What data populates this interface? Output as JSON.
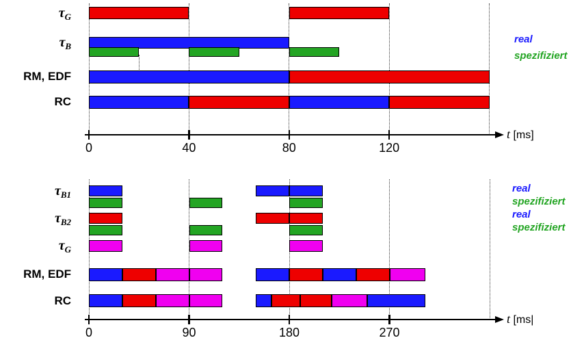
{
  "colors": {
    "red": "#ee0000",
    "blue": "#1a1aff",
    "green": "#23a523",
    "magenta": "#f000f0",
    "axis": "#000000"
  },
  "chart_data": [
    {
      "id": "top",
      "type": "gantt-schedule",
      "xlabel_var": "t",
      "xlabel_unit": "[ms]",
      "ticks": [
        0,
        40,
        80,
        120
      ],
      "x_axis_range_ms": [
        0,
        165
      ],
      "gridlines_ms": [
        0,
        40,
        80,
        120,
        160
      ],
      "aux_gridline_ms": 20,
      "grid": "dotted-vertical",
      "legend_position": "right",
      "legend": [
        {
          "text": "real",
          "color": "blue"
        },
        {
          "text": "spezifiziert",
          "color": "green"
        }
      ],
      "rows": [
        {
          "label": "τ",
          "sub": "G",
          "lanes": [
            [
              {
                "s": 0,
                "e": 40,
                "c": "red"
              },
              {
                "s": 80,
                "e": 120,
                "c": "red"
              }
            ]
          ]
        },
        {
          "label": "τ",
          "sub": "B",
          "lanes": [
            [
              {
                "s": 0,
                "e": 80,
                "c": "blue"
              }
            ],
            [
              {
                "s": 0,
                "e": 20,
                "c": "green"
              },
              {
                "s": 40,
                "e": 60,
                "c": "green"
              },
              {
                "s": 80,
                "e": 100,
                "c": "green"
              }
            ]
          ]
        },
        {
          "label": "RM, EDF",
          "lanes": [
            [
              {
                "s": 0,
                "e": 80,
                "c": "blue"
              },
              {
                "s": 80,
                "e": 160,
                "c": "red"
              }
            ]
          ]
        },
        {
          "label": "RC",
          "lanes": [
            [
              {
                "s": 0,
                "e": 40,
                "c": "blue"
              },
              {
                "s": 40,
                "e": 80,
                "c": "red"
              },
              {
                "s": 80,
                "e": 120,
                "c": "blue"
              },
              {
                "s": 120,
                "e": 160,
                "c": "red"
              }
            ]
          ]
        }
      ]
    },
    {
      "id": "bottom",
      "type": "gantt-schedule",
      "xlabel_var": "t",
      "xlabel_unit": "[ms|",
      "ticks": [
        0,
        90,
        180,
        270
      ],
      "x_axis_range_ms": [
        0,
        370
      ],
      "gridlines_ms": [
        0,
        90,
        180,
        270,
        360
      ],
      "grid": "dotted-vertical",
      "legend_position": "right",
      "legend": [
        {
          "text": "real",
          "color": "blue"
        },
        {
          "text": "spezifiziert",
          "color": "green"
        },
        {
          "text": "real",
          "color": "blue"
        },
        {
          "text": "spezifiziert",
          "color": "green"
        }
      ],
      "rows": [
        {
          "label": "τ",
          "sub": "B1",
          "lanes": [
            [
              {
                "s": 0,
                "e": 30,
                "c": "blue"
              },
              {
                "s": 150,
                "e": 180,
                "c": "blue"
              },
              {
                "s": 180,
                "e": 210,
                "c": "blue"
              }
            ],
            [
              {
                "s": 0,
                "e": 30,
                "c": "green"
              },
              {
                "s": 90,
                "e": 120,
                "c": "green"
              },
              {
                "s": 180,
                "e": 210,
                "c": "green"
              }
            ]
          ]
        },
        {
          "label": "τ",
          "sub": "B2",
          "lanes": [
            [
              {
                "s": 0,
                "e": 30,
                "c": "red"
              },
              {
                "s": 150,
                "e": 180,
                "c": "red"
              },
              {
                "s": 180,
                "e": 210,
                "c": "red"
              }
            ],
            [
              {
                "s": 0,
                "e": 30,
                "c": "green"
              },
              {
                "s": 90,
                "e": 120,
                "c": "green"
              },
              {
                "s": 180,
                "e": 210,
                "c": "green"
              }
            ]
          ]
        },
        {
          "label": "τ",
          "sub": "G",
          "lanes": [
            [
              {
                "s": 0,
                "e": 30,
                "c": "magenta"
              },
              {
                "s": 90,
                "e": 120,
                "c": "magenta"
              },
              {
                "s": 180,
                "e": 210,
                "c": "magenta"
              }
            ]
          ]
        },
        {
          "label": "RM, EDF",
          "lanes": [
            [
              {
                "s": 0,
                "e": 30,
                "c": "blue"
              },
              {
                "s": 30,
                "e": 60,
                "c": "red"
              },
              {
                "s": 60,
                "e": 90,
                "c": "magenta"
              },
              {
                "s": 90,
                "e": 120,
                "c": "magenta"
              },
              {
                "s": 150,
                "e": 180,
                "c": "blue"
              },
              {
                "s": 180,
                "e": 210,
                "c": "red"
              },
              {
                "s": 210,
                "e": 240,
                "c": "blue"
              },
              {
                "s": 240,
                "e": 270,
                "c": "red"
              },
              {
                "s": 270,
                "e": 302,
                "c": "magenta"
              }
            ]
          ]
        },
        {
          "label": "RC",
          "lanes": [
            [
              {
                "s": 0,
                "e": 30,
                "c": "blue"
              },
              {
                "s": 30,
                "e": 60,
                "c": "red"
              },
              {
                "s": 60,
                "e": 90,
                "c": "magenta"
              },
              {
                "s": 90,
                "e": 120,
                "c": "magenta"
              },
              {
                "s": 150,
                "e": 164,
                "c": "blue"
              },
              {
                "s": 164,
                "e": 190,
                "c": "red"
              },
              {
                "s": 190,
                "e": 218,
                "c": "red"
              },
              {
                "s": 218,
                "e": 250,
                "c": "magenta"
              },
              {
                "s": 250,
                "e": 302,
                "c": "blue"
              }
            ]
          ]
        }
      ]
    }
  ]
}
